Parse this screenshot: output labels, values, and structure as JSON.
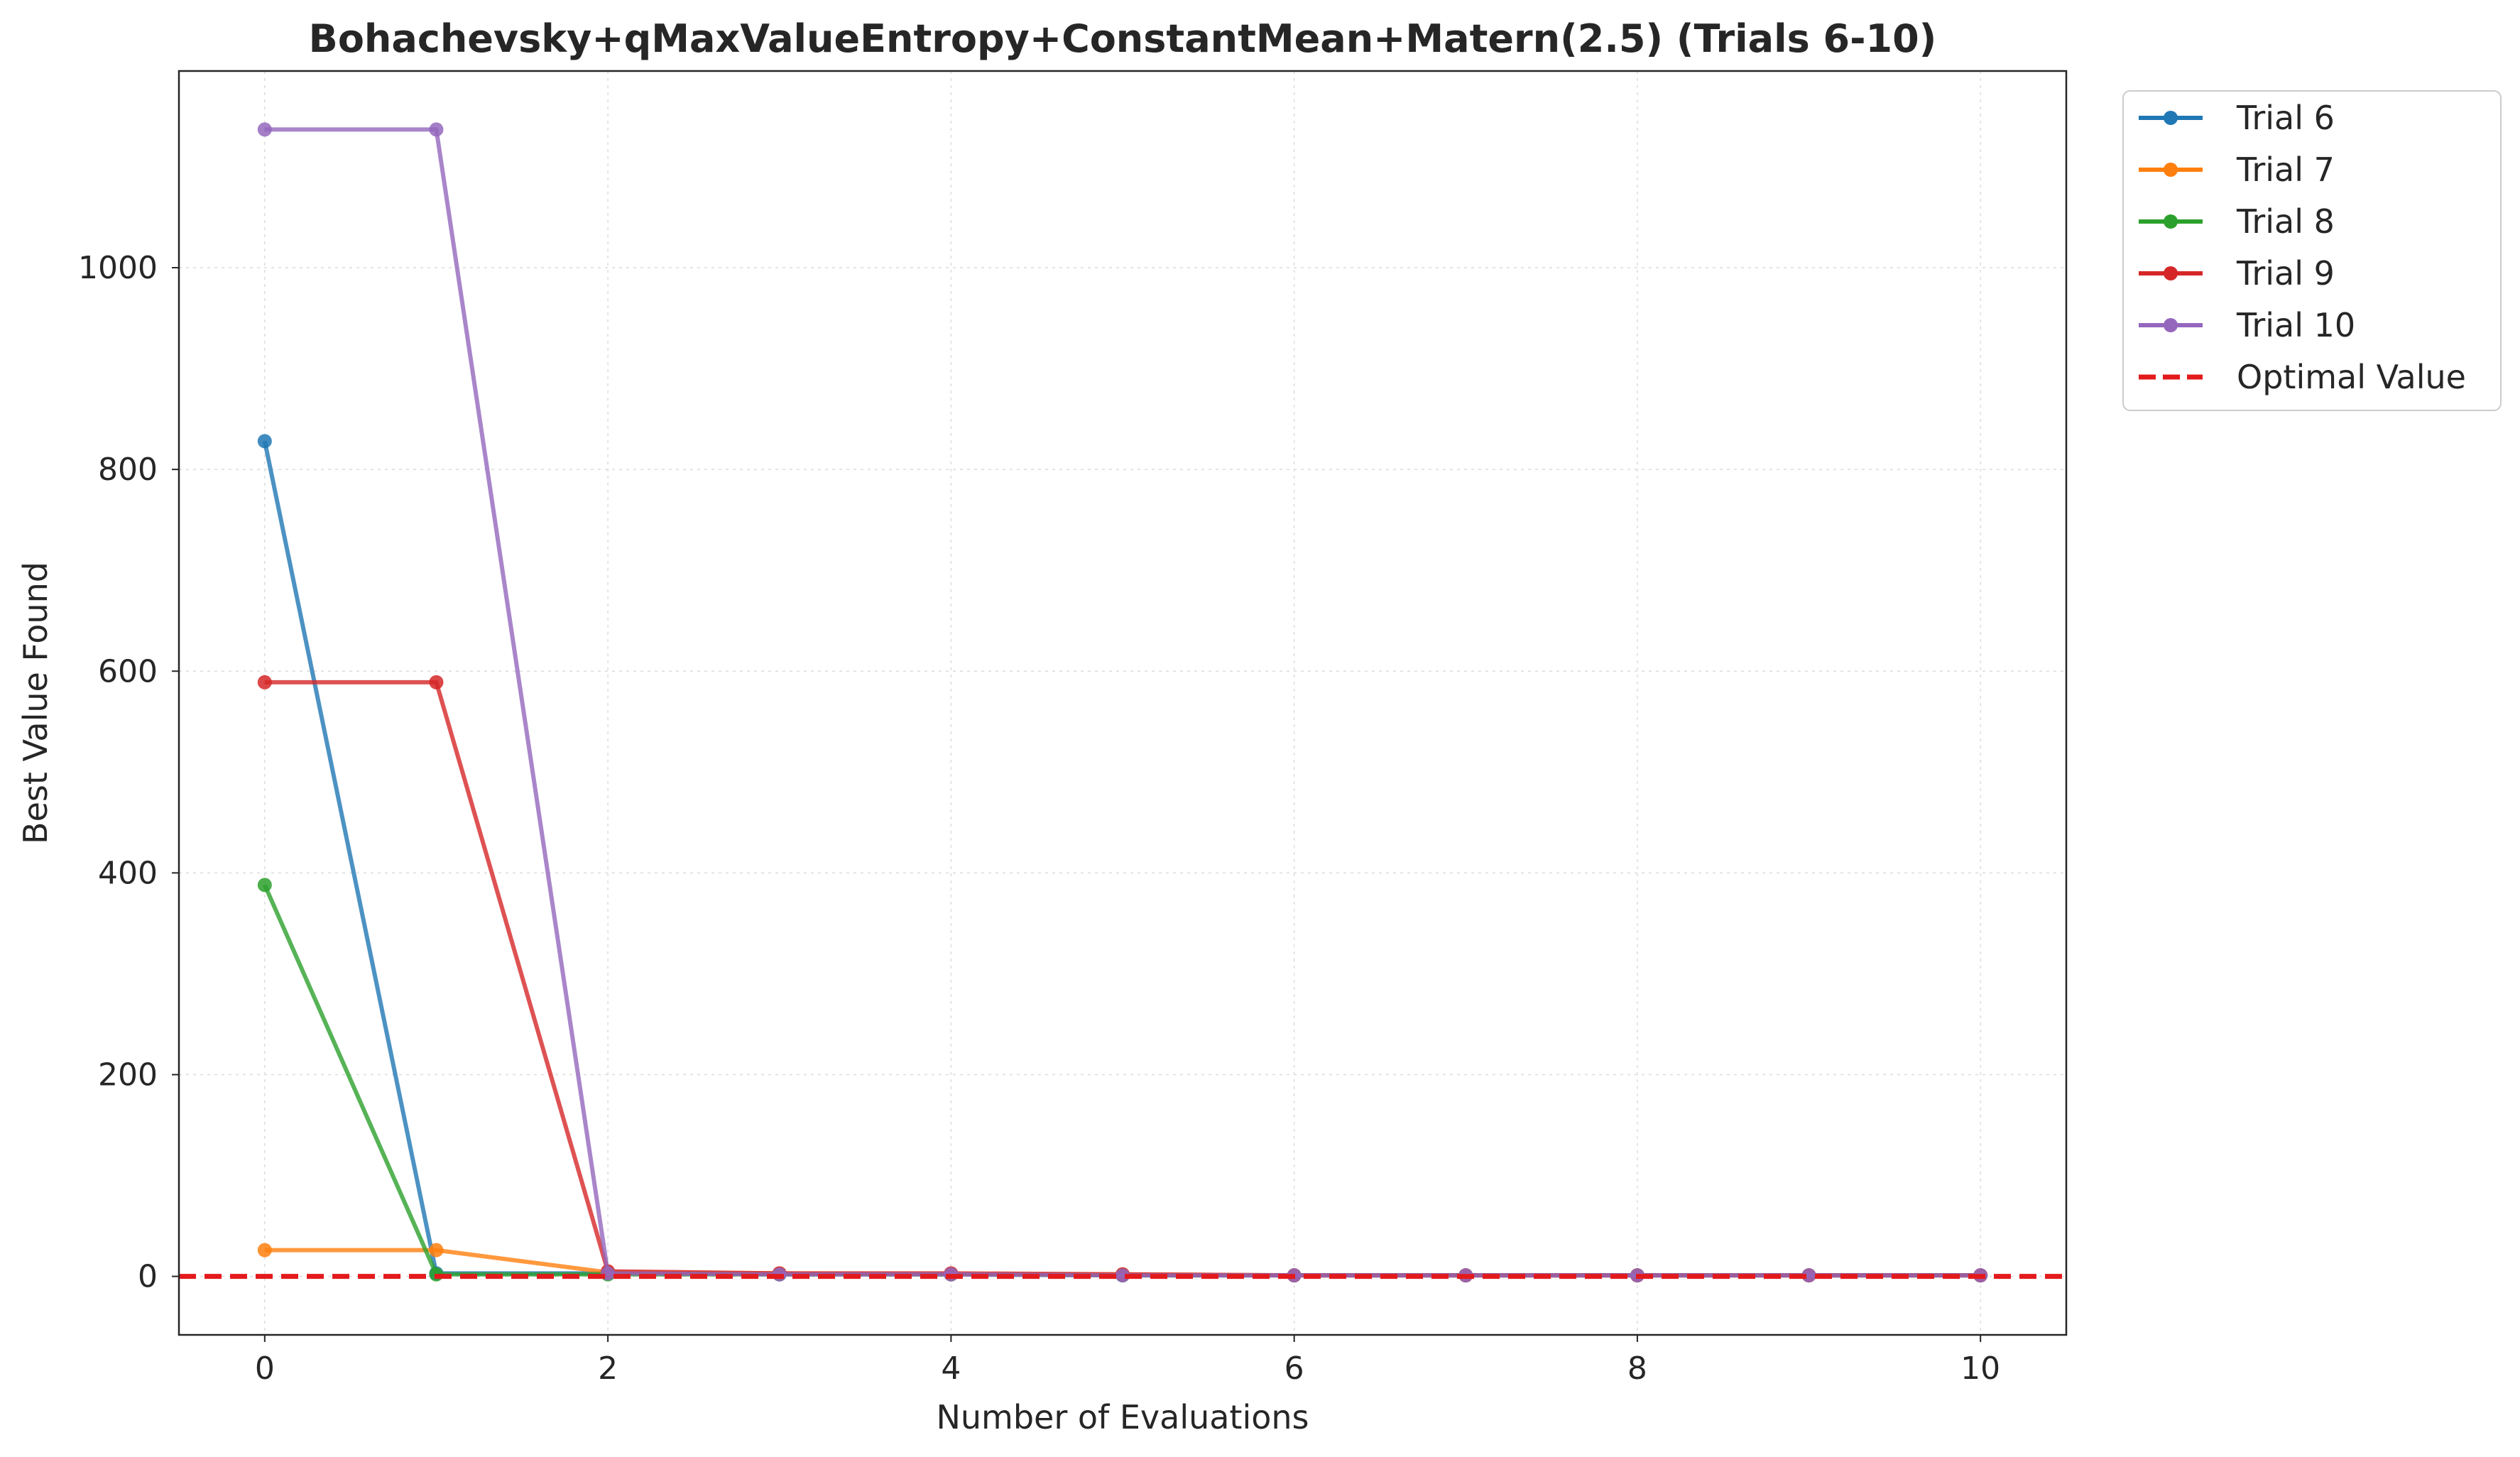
{
  "chart_data": {
    "type": "line",
    "title": "Bohachevsky+qMaxValueEntropy+ConstantMean+Matern(2.5) (Trials 6-10)",
    "xlabel": "Number of Evaluations",
    "ylabel": "Best Value Found",
    "xlim": [
      -0.5,
      10.5
    ],
    "ylim": [
      -58,
      1195
    ],
    "xticks": [
      0,
      2,
      4,
      6,
      8,
      10
    ],
    "yticks": [
      0,
      200,
      400,
      600,
      800,
      1000
    ],
    "grid": true,
    "legend_position": "outside-top-right",
    "optimal_value": 0,
    "series": [
      {
        "name": "Trial 6",
        "color": "#1f77b4",
        "x": [
          0,
          1,
          2,
          3,
          4,
          5,
          6,
          7,
          8,
          9,
          10
        ],
        "values": [
          828,
          3,
          3,
          2,
          2,
          1,
          1,
          1,
          1,
          1,
          1
        ]
      },
      {
        "name": "Trial 7",
        "color": "#ff7f0e",
        "x": [
          0,
          1,
          2,
          3,
          4,
          5,
          6,
          7,
          8,
          9,
          10
        ],
        "values": [
          26,
          26,
          4,
          3,
          2,
          2,
          1,
          1,
          1,
          1,
          1
        ]
      },
      {
        "name": "Trial 8",
        "color": "#2ca02c",
        "x": [
          0,
          1,
          2,
          3,
          4,
          5,
          6,
          7,
          8,
          9,
          10
        ],
        "values": [
          388,
          2,
          2,
          2,
          2,
          1,
          1,
          1,
          1,
          1,
          1
        ]
      },
      {
        "name": "Trial 9",
        "color": "#d62728",
        "x": [
          0,
          1,
          2,
          3,
          4,
          5,
          6,
          7,
          8,
          9,
          10
        ],
        "values": [
          589,
          589,
          5,
          3,
          3,
          2,
          1,
          1,
          1,
          1,
          1
        ]
      },
      {
        "name": "Trial 10",
        "color": "#9467bd",
        "x": [
          0,
          1,
          2,
          3,
          4,
          5,
          6,
          7,
          8,
          9,
          10
        ],
        "values": [
          1137,
          1137,
          3,
          2,
          2,
          1,
          1,
          1,
          1,
          1,
          1
        ]
      }
    ],
    "reference_line": {
      "name": "Optimal Value",
      "value": 0,
      "color": "#e31a1c",
      "style": "dashed"
    }
  }
}
